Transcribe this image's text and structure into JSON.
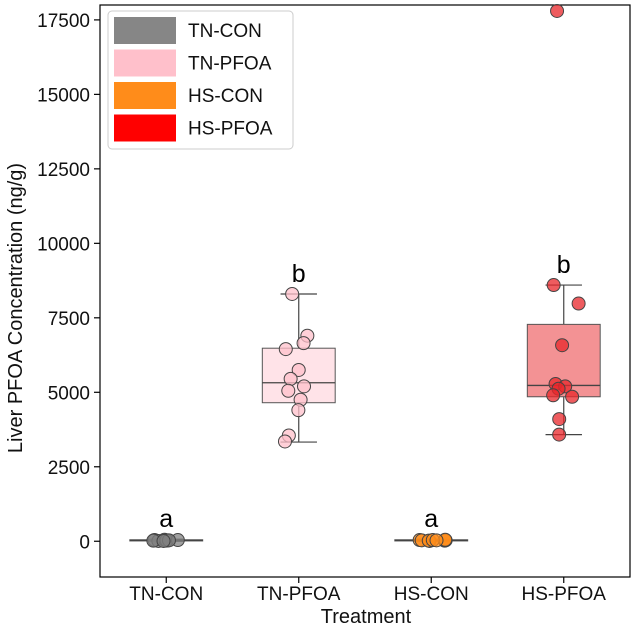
{
  "chart_data": {
    "type": "box",
    "xlabel": "Treatment",
    "ylabel": "Liver PFOA Concentration (ng/g)",
    "ylim": [
      -1200,
      18000
    ],
    "yticks": [
      0,
      2500,
      5000,
      7500,
      10000,
      12500,
      15000,
      17500
    ],
    "categories": [
      "TN-CON",
      "TN-PFOA",
      "HS-CON",
      "HS-PFOA"
    ],
    "groups": [
      {
        "name": "TN-CON",
        "fill": "#808080",
        "fill_opacity": 0.4,
        "point_color": "#808080",
        "q1": 10,
        "median": 30,
        "q3": 50,
        "whisker_low": 0,
        "whisker_high": 70,
        "letter": "a",
        "points": [
          20,
          30,
          40,
          10,
          50,
          30,
          20,
          40,
          30,
          10
        ]
      },
      {
        "name": "TN-PFOA",
        "fill": "#ffc0cb",
        "fill_opacity": 0.45,
        "point_color": "#ffc0cb",
        "q1": 4650,
        "median": 5320,
        "q3": 6480,
        "whisker_low": 3330,
        "whisker_high": 8300,
        "letter": "b",
        "points": [
          8300,
          6900,
          6650,
          6450,
          5750,
          5450,
          5200,
          5050,
          4750,
          4400,
          3550,
          3350
        ]
      },
      {
        "name": "HS-CON",
        "fill": "#ff8c1a",
        "fill_opacity": 0.45,
        "point_color": "#ff8c1a",
        "q1": 10,
        "median": 30,
        "q3": 50,
        "whisker_low": 0,
        "whisker_high": 70,
        "letter": "a",
        "points": [
          20,
          30,
          40,
          10,
          50,
          30,
          20,
          40,
          30
        ]
      },
      {
        "name": "HS-PFOA",
        "fill": "#e8262a",
        "fill_opacity": 0.5,
        "point_color": "#e8262a",
        "q1": 4850,
        "median": 5230,
        "q3": 7280,
        "whisker_low": 3580,
        "whisker_high": 8600,
        "letter": "b",
        "points": [
          17800,
          8600,
          7980,
          6580,
          5280,
          5200,
          5120,
          4900,
          4850,
          4100,
          3580
        ]
      }
    ],
    "legend": {
      "location": "upper-left",
      "entries": [
        {
          "label": "TN-CON",
          "color": "#808080"
        },
        {
          "label": "TN-PFOA",
          "color": "#ffc0cb"
        },
        {
          "label": "HS-CON",
          "color": "#ff8c1a"
        },
        {
          "label": "HS-PFOA",
          "color": "#ff0000"
        }
      ]
    }
  }
}
